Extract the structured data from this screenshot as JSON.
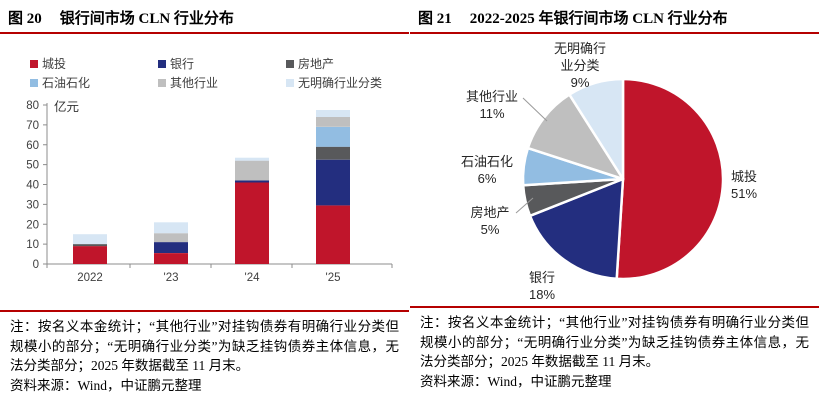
{
  "rule_color": "#B50000",
  "panels": {
    "left": {
      "fig_label": "图 20",
      "title": "银行间市场 CLN 行业分布",
      "note": "注：按名义本金统计；“其他行业”对挂钩债券有明确行业分类但规模小的部分；“无明确行业分类”为缺乏挂钩债券主体信息，无法分类部分；2025 年数据截至 11 月末。",
      "source": "资料来源：Wind，中证鹏元整理"
    },
    "right": {
      "fig_label": "图 21",
      "title": "2022-2025 年银行间市场 CLN 行业分布",
      "note": "注：按名义本金统计；“其他行业”对挂钩债券有明确行业分类但规模小的部分；“无明确行业分类”为缺乏挂钩债券主体信息，无法分类部分；2025 年数据截至 11 月末。",
      "source": "资料来源：Wind，中证鹏元整理"
    }
  },
  "chart_data": [
    {
      "type": "bar",
      "stacked": true,
      "title": "图 20 银行间市场 CLN 行业分布",
      "unit": "亿元",
      "xlabel": "",
      "ylabel": "亿元",
      "categories": [
        "2022",
        "'23",
        "'24",
        "'25"
      ],
      "series": [
        {
          "name": "城投",
          "color": "#C0152B",
          "values": [
            9,
            5.5,
            41,
            29.5
          ]
        },
        {
          "name": "银行",
          "color": "#232E7F",
          "values": [
            0,
            5.5,
            1,
            23
          ]
        },
        {
          "name": "房地产",
          "color": "#58595B",
          "values": [
            1,
            0,
            0,
            6.5
          ]
        },
        {
          "name": "石油石化",
          "color": "#92BDE2",
          "values": [
            0,
            0,
            0,
            10
          ]
        },
        {
          "name": "其他行业",
          "color": "#BFBFBF",
          "values": [
            0,
            4.5,
            10,
            5
          ]
        },
        {
          "name": "无明确行业分类",
          "color": "#D7E6F4",
          "values": [
            5,
            5.5,
            1.5,
            3.5
          ]
        }
      ],
      "ylim": [
        0,
        80
      ],
      "ytick_step": 10,
      "grid": false,
      "legend_position": "top"
    },
    {
      "type": "pie",
      "title": "图 21 2022-2025 年银行间市场 CLN 行业分布",
      "start_angle_deg": 0,
      "direction": "clockwise",
      "slices": [
        {
          "name": "城投",
          "pct": 51,
          "pct_label": "51%",
          "color": "#C0152B"
        },
        {
          "name": "银行",
          "pct": 18,
          "pct_label": "18%",
          "color": "#232E7F"
        },
        {
          "name": "房地产",
          "pct": 5,
          "pct_label": "5%",
          "color": "#58595B"
        },
        {
          "name": "石油石化",
          "pct": 6,
          "pct_label": "6%",
          "color": "#92BDE2"
        },
        {
          "name": "其他行业",
          "pct": 11,
          "pct_label": "11%",
          "color": "#BFBFBF"
        },
        {
          "name": "无明确行业分类",
          "pct": 9,
          "pct_label": "9%",
          "color": "#D7E6F4"
        }
      ]
    }
  ]
}
